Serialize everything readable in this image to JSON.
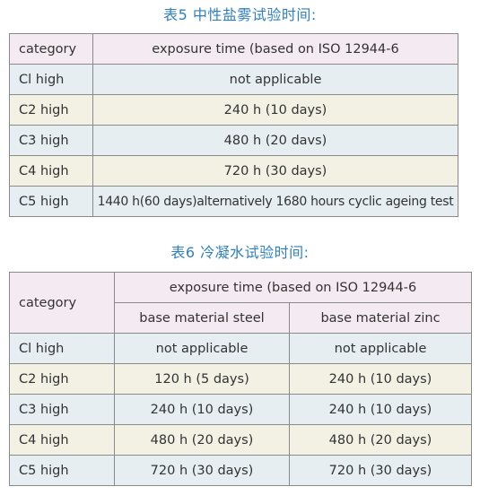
{
  "table5": {
    "caption": "表5 中性盐雾试验时间:",
    "header": [
      "category",
      "exposure time (based on ISO 12944-6"
    ],
    "rows": [
      {
        "category": "Cl high",
        "value": "not applicable"
      },
      {
        "category": "C2 high",
        "value": "240 h (10 days)"
      },
      {
        "category": "C3 high",
        "value": "480 h (20 davs)"
      },
      {
        "category": "C4 high",
        "value": "720 h (30 days)"
      },
      {
        "category": "C5 high",
        "value": "1440 h(60 days)alternatively 1680 hours cyclic ageing test"
      }
    ]
  },
  "table6": {
    "caption": "表6 冷凝水试验时间:",
    "header": {
      "category": "category",
      "exposure": "exposure time (based on ISO 12944-6",
      "steel": "base material steel",
      "zinc": "base material zinc"
    },
    "rows": [
      {
        "category": "Cl high",
        "steel": "not applicable",
        "zinc": "not applicable"
      },
      {
        "category": "C2 high",
        "steel": "120 h (5 days)",
        "zinc": "240 h (10 days)"
      },
      {
        "category": "C3 high",
        "steel": "240 h (10 days)",
        "zinc": "240 h (10 days)"
      },
      {
        "category": "C4 high",
        "steel": "480 h (20 days)",
        "zinc": "480 h (20 days)"
      },
      {
        "category": "C5 high",
        "steel": "720 h (30 days)",
        "zinc": "720 h (30 days)"
      }
    ]
  }
}
